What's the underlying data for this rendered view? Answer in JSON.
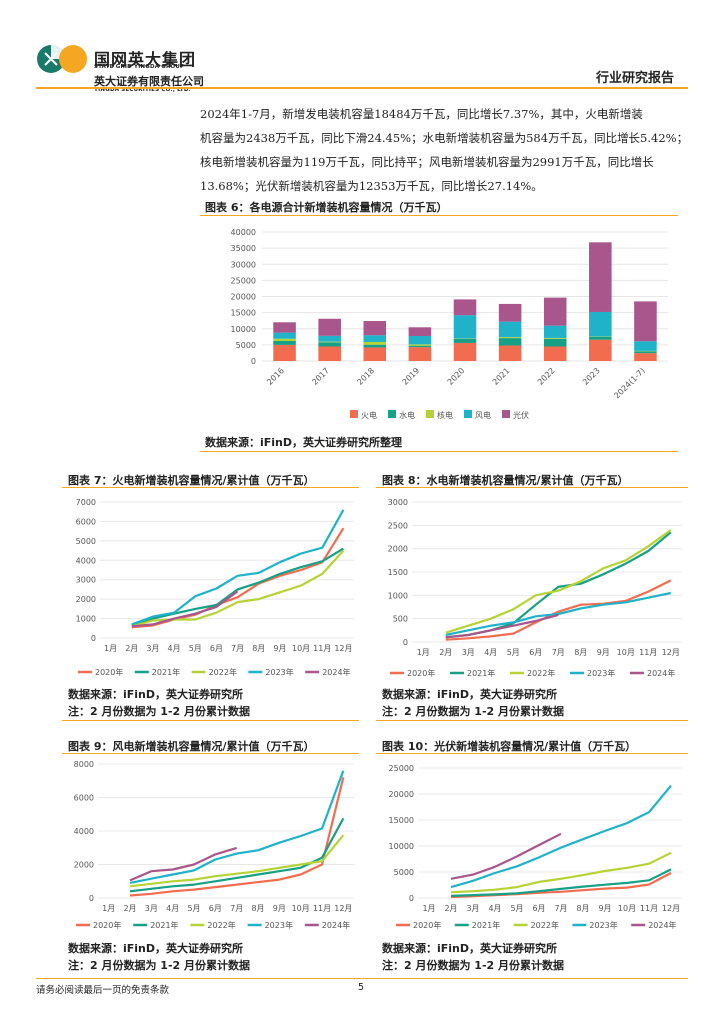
{
  "header": {
    "logo_cn": "国网英大集团",
    "logo_en1": "STATE GRID YINGDA GROUP",
    "company_cn": "英大证券有限责任公司",
    "company_en": "YINGDA SECURITIES CO., LTD.",
    "report_type": "行业研究报告"
  },
  "paragraph": [
    "2024年1-7月，新增发电装机容量18484万千瓦，同比增长7.37%，其中，火电新增装",
    "机容量为2438万千瓦，同比下滑24.45%；水电新增装机容量为584万千瓦，同比增长5.42%；",
    "核电新增装机容量为119万千瓦，同比持平；风电新增装机容量为2991万千瓦，同比增长",
    "13.68%；光伏新增装机容量为12353万千瓦，同比增长27.14%。"
  ],
  "colors": {
    "accent": "#F5A623",
    "thermal": "#F26C4F",
    "hydro": "#16A085",
    "nuclear": "#B5D334",
    "wind": "#1FB2C9",
    "solar": "#A8568C"
  },
  "fig6": {
    "title": "图表 6：各电源合计新增装机容量情况（万千瓦）",
    "source": "数据来源：iFinD，英大证券研究所整理"
  },
  "fig7": {
    "title": "图表 7：火电新增装机容量情况/累计值（万千瓦）",
    "source": "数据来源：iFinD，英大证券研究所",
    "note": "注：2 月份数据为 1-2 月份累计数据"
  },
  "fig8": {
    "title": "图表 8：水电新增装机容量情况/累计值（万千瓦）",
    "source": "数据来源：iFinD，英大证券研究所",
    "note": "注：2 月份数据为 1-2 月份累计数据"
  },
  "fig9": {
    "title": "图表 9：风电新增装机容量情况/累计值（万千瓦）",
    "source": "数据来源：iFinD，英大证券研究所",
    "note": "注：2 月份数据为 1-2 月份累计数据"
  },
  "fig10": {
    "title": "图表 10：光伏新增装机容量情况/累计值（万千瓦）",
    "source": "数据来源：iFinD，英大证券研究所",
    "note": "注：2 月份数据为 1-2 月份累计数据"
  },
  "footer": {
    "disclaimer": "请务必阅读最后一页的免责条款",
    "page": "5"
  },
  "chart_data": [
    {
      "type": "bar",
      "stacked": true,
      "title": "各电源合计新增装机容量情况（万千瓦）",
      "categories": [
        "2016",
        "2017",
        "2018",
        "2019",
        "2020",
        "2021",
        "2022",
        "2023",
        "2024(1-7)"
      ],
      "ylim": [
        0,
        40000
      ],
      "yticks": [
        0,
        5000,
        10000,
        15000,
        20000,
        25000,
        30000,
        35000,
        40000
      ],
      "series": [
        {
          "name": "火电",
          "values": [
            5000,
            4500,
            4200,
            4300,
            5600,
            4800,
            4500,
            6600,
            2438
          ]
        },
        {
          "name": "水电",
          "values": [
            1200,
            1300,
            850,
            450,
            1300,
            2300,
            2400,
            900,
            584
          ]
        },
        {
          "name": "核电",
          "values": [
            700,
            200,
            850,
            400,
            100,
            300,
            250,
            100,
            119
          ]
        },
        {
          "name": "风电",
          "values": [
            1900,
            1800,
            2100,
            2600,
            7200,
            4800,
            3800,
            7600,
            2991
          ]
        },
        {
          "name": "光伏",
          "values": [
            3200,
            5300,
            4400,
            2700,
            4900,
            5500,
            8700,
            21600,
            12353
          ]
        }
      ]
    },
    {
      "type": "line",
      "title": "火电新增装机容量情况/累计值（万千瓦）",
      "categories": [
        "1月",
        "2月",
        "3月",
        "4月",
        "5月",
        "6月",
        "7月",
        "8月",
        "9月",
        "10月",
        "11月",
        "12月"
      ],
      "ylim": [
        0,
        7000
      ],
      "yticks": [
        0,
        1000,
        2000,
        3000,
        4000,
        5000,
        6000,
        7000
      ],
      "series": [
        {
          "name": "2020年",
          "values": [
            null,
            550,
            650,
            950,
            1200,
            1700,
            2100,
            2800,
            3200,
            3500,
            3900,
            5650
          ]
        },
        {
          "name": "2021年",
          "values": [
            null,
            650,
            1000,
            1250,
            1500,
            1700,
            2500,
            2850,
            3300,
            3650,
            3950,
            4600
          ]
        },
        {
          "name": "2022年",
          "values": [
            null,
            600,
            900,
            950,
            950,
            1300,
            1850,
            2000,
            2350,
            2700,
            3300,
            4500
          ]
        },
        {
          "name": "2023年",
          "values": [
            null,
            700,
            1100,
            1300,
            2150,
            2550,
            3200,
            3350,
            3900,
            4350,
            4650,
            6600
          ]
        },
        {
          "name": "2024年",
          "values": [
            null,
            600,
            700,
            1000,
            1250,
            1600,
            2400,
            null,
            null,
            null,
            null,
            null
          ]
        }
      ]
    },
    {
      "type": "line",
      "title": "水电新增装机容量情况/累计值（万千瓦）",
      "categories": [
        "1月",
        "2月",
        "3月",
        "4月",
        "5月",
        "6月",
        "7月",
        "8月",
        "9月",
        "10月",
        "11月",
        "12月"
      ],
      "ylim": [
        0,
        3000
      ],
      "yticks": [
        0,
        500,
        1000,
        1500,
        2000,
        2500,
        3000
      ],
      "series": [
        {
          "name": "2020年",
          "values": [
            null,
            50,
            80,
            120,
            180,
            420,
            650,
            800,
            820,
            880,
            1080,
            1320
          ]
        },
        {
          "name": "2021年",
          "values": [
            null,
            100,
            150,
            250,
            400,
            800,
            1180,
            1250,
            1450,
            1680,
            1950,
            2350
          ]
        },
        {
          "name": "2022年",
          "values": [
            null,
            200,
            350,
            500,
            700,
            1000,
            1100,
            1300,
            1580,
            1750,
            2050,
            2400
          ]
        },
        {
          "name": "2023年",
          "values": [
            null,
            150,
            250,
            350,
            420,
            550,
            600,
            720,
            800,
            850,
            950,
            1050
          ]
        },
        {
          "name": "2024年",
          "values": [
            null,
            100,
            150,
            250,
            350,
            450,
            580,
            null,
            null,
            null,
            null,
            null
          ]
        }
      ]
    },
    {
      "type": "line",
      "title": "风电新增装机容量情况/累计值（万千瓦）",
      "categories": [
        "1月",
        "2月",
        "3月",
        "4月",
        "5月",
        "6月",
        "7月",
        "8月",
        "9月",
        "10月",
        "11月",
        "12月"
      ],
      "ylim": [
        0,
        8000
      ],
      "yticks": [
        0,
        2000,
        4000,
        6000,
        8000
      ],
      "series": [
        {
          "name": "2020年",
          "values": [
            null,
            150,
            250,
            400,
            500,
            650,
            800,
            950,
            1100,
            1400,
            2000,
            7200
          ]
        },
        {
          "name": "2021年",
          "values": [
            null,
            400,
            550,
            700,
            800,
            1000,
            1200,
            1400,
            1600,
            1800,
            2400,
            4750
          ]
        },
        {
          "name": "2022年",
          "values": [
            null,
            700,
            850,
            1000,
            1100,
            1300,
            1450,
            1600,
            1800,
            2000,
            2200,
            3750
          ]
        },
        {
          "name": "2023年",
          "values": [
            null,
            900,
            1150,
            1400,
            1650,
            2300,
            2650,
            2850,
            3300,
            3700,
            4150,
            7600
          ]
        },
        {
          "name": "2024年",
          "values": [
            null,
            1050,
            1600,
            1700,
            2000,
            2600,
            2990,
            null,
            null,
            null,
            null,
            null
          ]
        }
      ]
    },
    {
      "type": "line",
      "title": "光伏新增装机容量情况/累计值（万千瓦）",
      "categories": [
        "1月",
        "2月",
        "3月",
        "4月",
        "5月",
        "6月",
        "7月",
        "8月",
        "9月",
        "10月",
        "11月",
        "12月"
      ],
      "ylim": [
        0,
        25000
      ],
      "yticks": [
        0,
        5000,
        10000,
        15000,
        20000,
        25000
      ],
      "series": [
        {
          "name": "2020年",
          "values": [
            null,
            200,
            350,
            550,
            750,
            1000,
            1200,
            1500,
            1800,
            2000,
            2600,
            4800
          ]
        },
        {
          "name": "2021年",
          "values": [
            null,
            400,
            550,
            700,
            900,
            1300,
            1750,
            2200,
            2550,
            2900,
            3400,
            5500
          ]
        },
        {
          "name": "2022年",
          "values": [
            null,
            1100,
            1300,
            1600,
            2100,
            3100,
            3700,
            4400,
            5200,
            5800,
            6600,
            8700
          ]
        },
        {
          "name": "2023年",
          "values": [
            null,
            2100,
            3300,
            4800,
            6100,
            7800,
            9700,
            11300,
            12900,
            14400,
            16500,
            21600
          ]
        },
        {
          "name": "2024年",
          "values": [
            null,
            3700,
            4500,
            6000,
            8000,
            10200,
            12350,
            null,
            null,
            null,
            null,
            null
          ]
        }
      ]
    }
  ]
}
